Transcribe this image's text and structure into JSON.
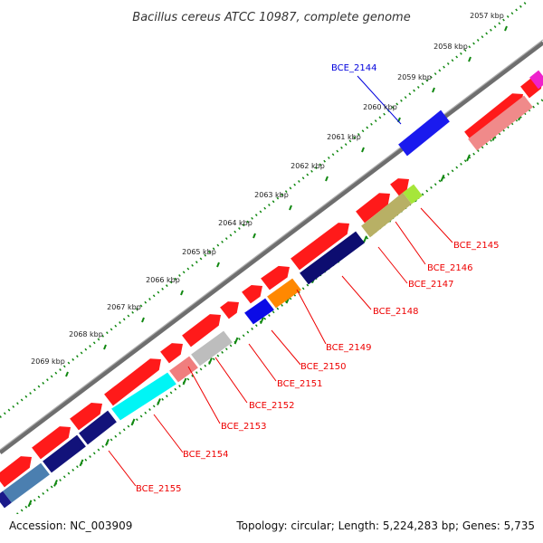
{
  "title": "Bacillus cereus ATCC 10987, complete genome",
  "footer": {
    "accession": "Accession: NC_003909",
    "summary": "Topology: circular; Length: 5,224,283 bp; Genes: 5,735"
  },
  "colors": {
    "backbone": "#888888",
    "tick_outer": "#118811",
    "tick_inner": "#118811",
    "label_red": "#ee0000",
    "label_blue": "#0000dd"
  },
  "scale_labels": [
    "2057 kbp",
    "2058 kbp",
    "2059 kbp",
    "2060 kbp",
    "2061 kbp",
    "2062 kbp",
    "2063 kbp",
    "2064 kbp",
    "2065 kbp",
    "2066 kbp",
    "2067 kbp",
    "2068 kbp",
    "2069 kbp"
  ],
  "gene_labels": [
    {
      "name": "BCE_2144",
      "color": "blue"
    },
    {
      "name": "BCE_2145",
      "color": "red"
    },
    {
      "name": "BCE_2146",
      "color": "red"
    },
    {
      "name": "BCE_2147",
      "color": "red"
    },
    {
      "name": "BCE_2148",
      "color": "red"
    },
    {
      "name": "BCE_2149",
      "color": "red"
    },
    {
      "name": "BCE_2150",
      "color": "red"
    },
    {
      "name": "BCE_2151",
      "color": "red"
    },
    {
      "name": "BCE_2152",
      "color": "red"
    },
    {
      "name": "BCE_2153",
      "color": "red"
    },
    {
      "name": "BCE_2154",
      "color": "red"
    },
    {
      "name": "BCE_2155",
      "color": "red"
    }
  ]
}
